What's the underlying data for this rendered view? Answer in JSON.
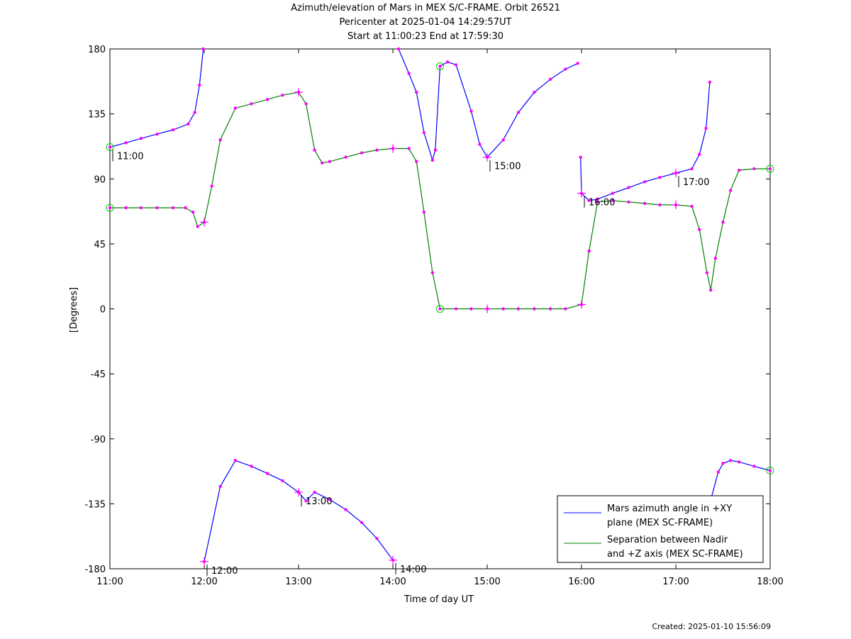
{
  "title_lines": [
    "Azimuth/elevation of Mars in MEX S/C-FRAME.  Orbit 26521",
    "Pericenter at 2025-01-04 14:29:57UT",
    "Start at 11:00:23 End at 17:59:30"
  ],
  "footer": "Created: 2025-01-10 15:56:09",
  "colors": {
    "azimuth": "#0000ff",
    "separation": "#008000",
    "markers": "#ff00ff",
    "circle_markers": "#00cc00"
  },
  "chart_data": {
    "type": "line",
    "xlabel": "Time of day UT",
    "ylabel": "[Degrees]",
    "xlim": [
      11,
      18
    ],
    "ylim": [
      -180,
      180
    ],
    "x_ticks": [
      11,
      12,
      13,
      14,
      15,
      16,
      17,
      18
    ],
    "x_tick_labels": [
      "11:00",
      "12:00",
      "13:00",
      "14:00",
      "15:00",
      "16:00",
      "17:00",
      "18:00"
    ],
    "y_ticks": [
      180,
      135,
      90,
      45,
      0,
      -45,
      -90,
      -135,
      -180
    ],
    "y_tick_labels": [
      "180",
      "135",
      "90",
      "45",
      "0",
      "-45",
      "-90",
      "-135",
      "-180"
    ],
    "grid": false,
    "legend_position": "bottom-right",
    "series": [
      {
        "name": "Mars azimuth angle in +XY plane (MEX SC-FRAME)",
        "legend_lines": [
          "Mars azimuth angle in +XY",
          "plane (MEX SC-FRAME)"
        ],
        "color": "#0000ff",
        "segments": [
          [
            [
              11.0,
              112
            ],
            [
              11.17,
              115
            ],
            [
              11.33,
              118
            ],
            [
              11.5,
              121
            ],
            [
              11.67,
              124
            ],
            [
              11.83,
              128
            ],
            [
              11.9,
              136
            ],
            [
              11.95,
              155
            ],
            [
              11.99,
              180
            ]
          ],
          [
            [
              12.0,
              -175
            ],
            [
              12.17,
              -123
            ],
            [
              12.33,
              -105
            ],
            [
              12.5,
              -109
            ],
            [
              12.67,
              -114
            ],
            [
              12.83,
              -119
            ],
            [
              13.0,
              -127
            ],
            [
              13.08,
              -133
            ],
            [
              13.17,
              -127
            ],
            [
              13.33,
              -132
            ],
            [
              13.5,
              -139
            ],
            [
              13.67,
              -148
            ],
            [
              13.83,
              -159
            ],
            [
              14.0,
              -174
            ]
          ],
          [
            [
              14.06,
              180
            ],
            [
              14.17,
              163
            ],
            [
              14.25,
              150
            ],
            [
              14.33,
              122
            ],
            [
              14.42,
              103
            ],
            [
              14.45,
              110
            ],
            [
              14.5,
              168
            ],
            [
              14.58,
              171
            ],
            [
              14.67,
              169
            ],
            [
              14.83,
              137
            ],
            [
              14.92,
              114
            ],
            [
              15.0,
              105
            ],
            [
              15.17,
              117
            ],
            [
              15.33,
              136
            ],
            [
              15.5,
              150
            ],
            [
              15.67,
              159
            ],
            [
              15.83,
              166
            ],
            [
              15.96,
              170
            ]
          ],
          [
            [
              15.99,
              105
            ],
            [
              16.0,
              80
            ],
            [
              16.08,
              75
            ],
            [
              16.17,
              76
            ],
            [
              16.33,
              80
            ],
            [
              16.5,
              84
            ],
            [
              16.67,
              88
            ],
            [
              16.83,
              91
            ],
            [
              17.0,
              94
            ],
            [
              17.17,
              97
            ],
            [
              17.25,
              107
            ],
            [
              17.32,
              125
            ],
            [
              17.36,
              157
            ]
          ],
          [
            [
              17.38,
              -130
            ],
            [
              17.45,
              -113
            ],
            [
              17.5,
              -107
            ],
            [
              17.58,
              -105
            ],
            [
              17.67,
              -106
            ],
            [
              17.83,
              -109
            ],
            [
              18.0,
              -112
            ]
          ]
        ]
      },
      {
        "name": "Separation between Nadir and +Z axis (MEX SC-FRAME)",
        "legend_lines": [
          "Separation between Nadir",
          "and +Z axis (MEX SC-FRAME)"
        ],
        "color": "#008000",
        "segments": [
          [
            [
              11.0,
              70
            ],
            [
              11.17,
              70
            ],
            [
              11.33,
              70
            ],
            [
              11.5,
              70
            ],
            [
              11.67,
              70
            ],
            [
              11.8,
              70
            ],
            [
              11.88,
              67
            ],
            [
              11.93,
              57
            ],
            [
              12.0,
              60
            ],
            [
              12.08,
              85
            ],
            [
              12.17,
              117
            ],
            [
              12.33,
              139
            ],
            [
              12.5,
              142
            ],
            [
              12.67,
              145
            ],
            [
              12.83,
              148
            ],
            [
              13.0,
              150
            ],
            [
              13.08,
              142
            ],
            [
              13.17,
              110
            ],
            [
              13.25,
              101
            ],
            [
              13.33,
              102
            ],
            [
              13.5,
              105
            ],
            [
              13.67,
              108
            ],
            [
              13.83,
              110
            ],
            [
              14.0,
              111
            ],
            [
              14.17,
              111
            ],
            [
              14.25,
              102
            ],
            [
              14.33,
              67
            ],
            [
              14.42,
              25
            ],
            [
              14.5,
              0
            ],
            [
              14.67,
              0
            ],
            [
              14.83,
              0
            ],
            [
              15.0,
              0
            ],
            [
              15.17,
              0
            ],
            [
              15.33,
              0
            ],
            [
              15.5,
              0
            ],
            [
              15.67,
              0
            ],
            [
              15.83,
              0
            ],
            [
              16.0,
              3
            ],
            [
              16.08,
              40
            ],
            [
              16.17,
              74
            ],
            [
              16.33,
              75
            ],
            [
              16.5,
              74
            ],
            [
              16.67,
              73
            ],
            [
              16.83,
              72
            ],
            [
              17.0,
              72
            ],
            [
              17.17,
              71
            ],
            [
              17.25,
              55
            ],
            [
              17.33,
              25
            ],
            [
              17.37,
              13
            ],
            [
              17.42,
              35
            ],
            [
              17.5,
              60
            ],
            [
              17.58,
              82
            ],
            [
              17.67,
              96
            ],
            [
              17.83,
              97
            ],
            [
              18.0,
              97
            ]
          ]
        ]
      }
    ],
    "hour_labels": [
      {
        "label": "11:00",
        "x": 11.0,
        "y": 112,
        "series": "azimuth"
      },
      {
        "label": "12:00",
        "x": 12.0,
        "y": -175,
        "series": "azimuth"
      },
      {
        "label": "13:00",
        "x": 13.0,
        "y": -127,
        "series": "azimuth"
      },
      {
        "label": "14:00",
        "x": 14.0,
        "y": -174,
        "series": "azimuth"
      },
      {
        "label": "15:00",
        "x": 15.0,
        "y": 105,
        "series": "azimuth"
      },
      {
        "label": "16:00",
        "x": 16.0,
        "y": 80,
        "series": "azimuth"
      },
      {
        "label": "17:00",
        "x": 17.0,
        "y": 94,
        "series": "azimuth"
      }
    ],
    "circle_points": [
      [
        11.0,
        112
      ],
      [
        11.0,
        70
      ],
      [
        14.5,
        168
      ],
      [
        14.5,
        0
      ],
      [
        18.0,
        97
      ],
      [
        18.0,
        -112
      ]
    ],
    "cross_points": [
      [
        12.0,
        -175
      ],
      [
        12.0,
        60
      ],
      [
        13.0,
        -127
      ],
      [
        13.0,
        150
      ],
      [
        14.0,
        -174
      ],
      [
        14.0,
        111
      ],
      [
        15.0,
        105
      ],
      [
        15.0,
        0
      ],
      [
        16.0,
        80
      ],
      [
        16.0,
        3
      ],
      [
        17.0,
        94
      ],
      [
        17.0,
        72
      ]
    ]
  }
}
